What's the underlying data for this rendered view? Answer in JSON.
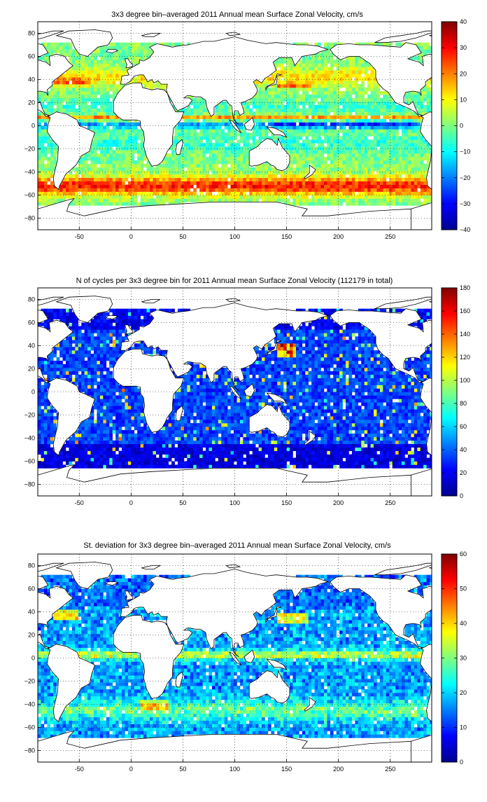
{
  "panels": [
    {
      "id": "zonal-mean",
      "title": "3x3 degree bin–averaged 2011 Annual mean Surface Zonal Velocity, cm/s",
      "colorbar": {
        "min": -40,
        "max": 40,
        "ticks": [
          "40",
          "30",
          "20",
          "10",
          "0",
          "−10",
          "−20",
          "−30",
          "−40"
        ]
      },
      "field": "zonal"
    },
    {
      "id": "cycle-count",
      "title": "N of cycles per 3x3 degree bin for 2011 Annual mean Surface Zonal Velocity (112179 in total)",
      "colorbar": {
        "min": 0,
        "max": 180,
        "ticks": [
          "180",
          "160",
          "140",
          "120",
          "100",
          "80",
          "60",
          "40",
          "20",
          "0"
        ]
      },
      "field": "count"
    },
    {
      "id": "zonal-std",
      "title": "St. deviation for 3x3 degree bin–averaged 2011 Annual mean Surface Zonal Velocity, cm/s",
      "colorbar": {
        "min": 0,
        "max": 60,
        "ticks": [
          "60",
          "50",
          "40",
          "30",
          "20",
          "10",
          "0"
        ]
      },
      "field": "std"
    }
  ],
  "axes": {
    "lon_range": [
      -90,
      290
    ],
    "lat_range": [
      -90,
      90
    ],
    "x_ticks": [
      "-50",
      "0",
      "50",
      "100",
      "150",
      "200",
      "250"
    ],
    "y_ticks": [
      "80",
      "60",
      "40",
      "20",
      "0",
      "−20",
      "−40",
      "−60",
      "−80"
    ],
    "bin_size_deg": 3,
    "grid": "dotted"
  },
  "colors": {
    "land": "#ffffff",
    "coast": "#000000",
    "colormap": "jet"
  }
}
